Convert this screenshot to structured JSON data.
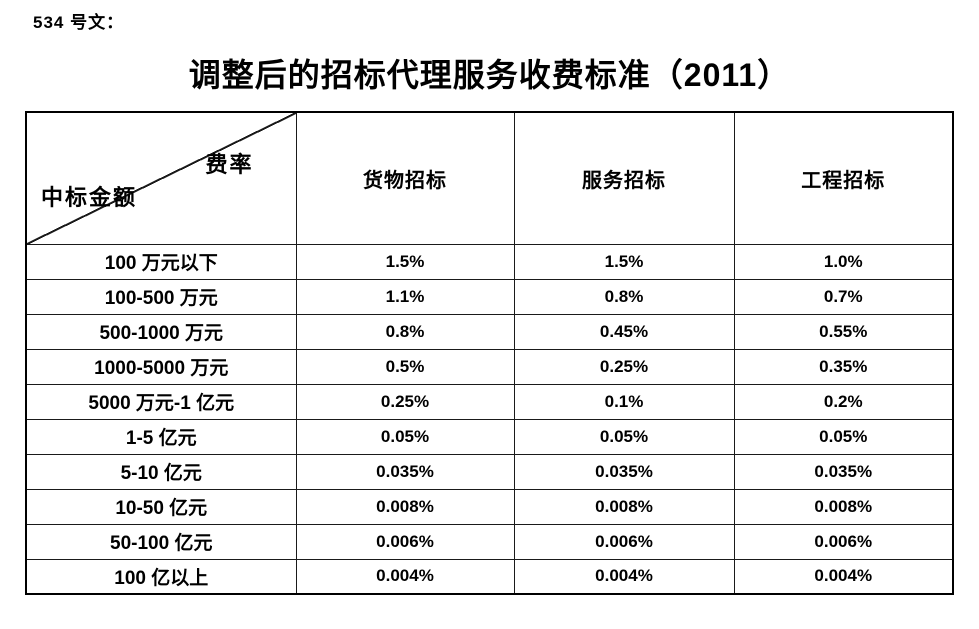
{
  "page": {
    "doc_label": "534 号文：",
    "title": "调整后的招标代理服务收费标准（2011）"
  },
  "table": {
    "corner": {
      "top_right": "费率",
      "bottom_left": "中标金额"
    },
    "columns": [
      "货物招标",
      "服务招标",
      "工程招标"
    ],
    "rows": [
      {
        "amount": "100 万元以下",
        "values": [
          "1.5%",
          "1.5%",
          "1.0%"
        ]
      },
      {
        "amount": "100-500 万元",
        "values": [
          "1.1%",
          "0.8%",
          "0.7%"
        ]
      },
      {
        "amount": "500-1000 万元",
        "values": [
          "0.8%",
          "0.45%",
          "0.55%"
        ]
      },
      {
        "amount": "1000-5000 万元",
        "values": [
          "0.5%",
          "0.25%",
          "0.35%"
        ]
      },
      {
        "amount": "5000 万元-1 亿元",
        "values": [
          "0.25%",
          "0.1%",
          "0.2%"
        ]
      },
      {
        "amount": "1-5 亿元",
        "values": [
          "0.05%",
          "0.05%",
          "0.05%"
        ]
      },
      {
        "amount": "5-10 亿元",
        "values": [
          "0.035%",
          "0.035%",
          "0.035%"
        ]
      },
      {
        "amount": "10-50 亿元",
        "values": [
          "0.008%",
          "0.008%",
          "0.008%"
        ]
      },
      {
        "amount": "50-100 亿元",
        "values": [
          "0.006%",
          "0.006%",
          "0.006%"
        ]
      },
      {
        "amount": "100 亿以上",
        "values": [
          "0.004%",
          "0.004%",
          "0.004%"
        ]
      }
    ],
    "colors": {
      "text": "#000000",
      "border": "#1a1a1a",
      "background": "#ffffff"
    }
  }
}
